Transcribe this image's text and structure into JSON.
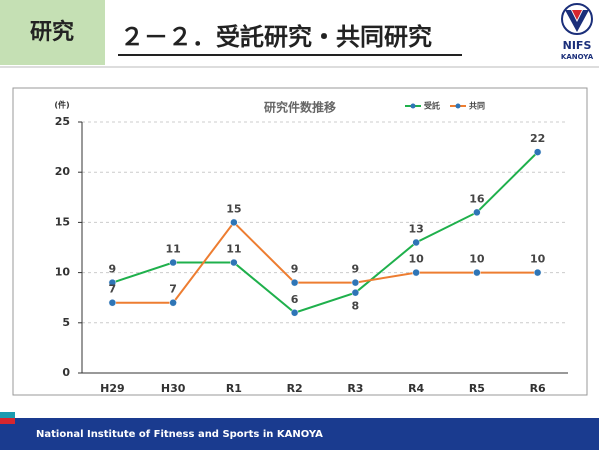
{
  "header": {
    "tag": "研究",
    "title": "２－２．受託研究・共同研究",
    "logo_name": "NIFS",
    "logo_place": "KANOYA"
  },
  "footer": "National Institute of Fitness and Sports in KANOYA",
  "chart_data": {
    "type": "line",
    "title": "研究件数推移",
    "y_unit": "(件)",
    "categories": [
      "H29",
      "H30",
      "R1",
      "R2",
      "R3",
      "R4",
      "R5",
      "R6"
    ],
    "series": [
      {
        "name": "受託",
        "color": "#1fb04c",
        "values": [
          9,
          11,
          11,
          6,
          8,
          13,
          16,
          22
        ]
      },
      {
        "name": "共同",
        "color": "#ed7d31",
        "values": [
          7,
          7,
          15,
          9,
          9,
          10,
          10,
          10
        ]
      }
    ],
    "ylim": [
      0,
      25
    ],
    "yticks": [
      0,
      5,
      10,
      15,
      20,
      25
    ],
    "grid": true,
    "legend": "top-right"
  }
}
